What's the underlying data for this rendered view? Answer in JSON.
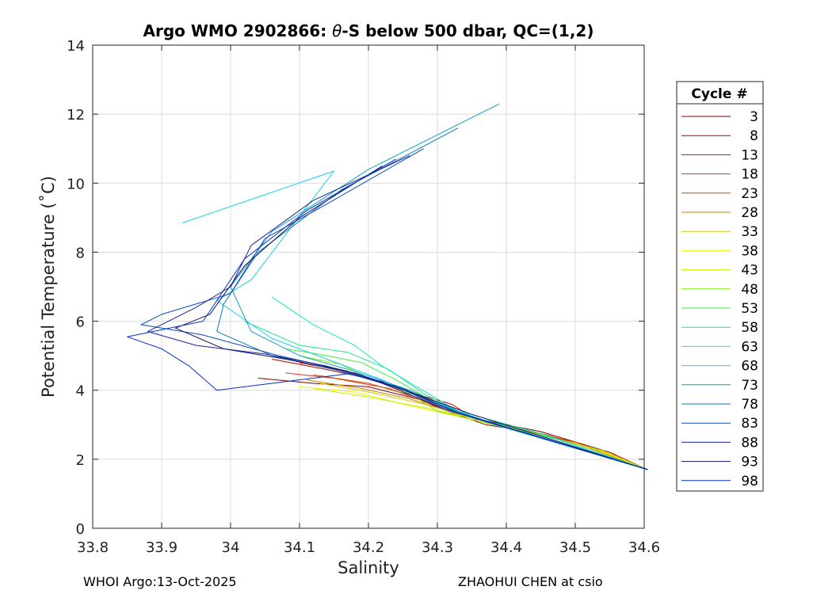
{
  "chart_data": {
    "type": "line",
    "title_prefix": "Argo WMO 2902866: ",
    "title_theta": "θ",
    "title_suffix": "-S below 500 dbar,  QC=(1,2)",
    "xlabel": "Salinity",
    "ylabel": "Potential Temperature (˚C)",
    "xlim": [
      33.8,
      34.6
    ],
    "ylim": [
      0,
      14
    ],
    "xticks": [
      "33.8",
      "33.9",
      "34",
      "34.1",
      "34.2",
      "34.3",
      "34.4",
      "34.5",
      "34.6"
    ],
    "yticks": [
      "0",
      "2",
      "4",
      "6",
      "8",
      "10",
      "12",
      "14"
    ],
    "grid": true,
    "legend_title": "Cycle #",
    "legend_position": "right-outside",
    "series": [
      {
        "name": "3",
        "color": "#7f0000",
        "points": [
          [
            34.04,
            4.35
          ],
          [
            34.12,
            4.2
          ],
          [
            34.2,
            4.1
          ],
          [
            34.28,
            3.7
          ],
          [
            34.35,
            3.2
          ],
          [
            34.45,
            2.8
          ],
          [
            34.55,
            2.2
          ],
          [
            34.605,
            1.7
          ]
        ]
      },
      {
        "name": "8",
        "color": "#b30000",
        "points": [
          [
            34.06,
            4.9
          ],
          [
            34.14,
            4.6
          ],
          [
            34.22,
            4.25
          ],
          [
            34.3,
            3.5
          ],
          [
            34.37,
            3.0
          ],
          [
            34.45,
            2.75
          ],
          [
            34.55,
            2.15
          ],
          [
            34.605,
            1.7
          ]
        ]
      },
      {
        "name": "13",
        "color": "#e60000",
        "points": [
          [
            34.1,
            4.8
          ],
          [
            34.18,
            4.5
          ],
          [
            34.25,
            4.0
          ],
          [
            34.32,
            3.6
          ],
          [
            34.36,
            3.1
          ],
          [
            34.42,
            2.9
          ],
          [
            34.52,
            2.35
          ],
          [
            34.605,
            1.7
          ]
        ]
      },
      {
        "name": "18",
        "color": "#e6301a",
        "points": [
          [
            34.08,
            4.5
          ],
          [
            34.15,
            4.35
          ],
          [
            34.23,
            4.05
          ],
          [
            34.31,
            3.45
          ],
          [
            34.38,
            3.05
          ],
          [
            34.46,
            2.7
          ],
          [
            34.56,
            2.1
          ],
          [
            34.605,
            1.7
          ]
        ]
      },
      {
        "name": "23",
        "color": "#d24d00",
        "points": [
          [
            34.12,
            4.45
          ],
          [
            34.2,
            4.2
          ],
          [
            34.27,
            3.8
          ],
          [
            34.34,
            3.25
          ],
          [
            34.4,
            2.95
          ],
          [
            34.5,
            2.5
          ],
          [
            34.605,
            1.7
          ]
        ]
      },
      {
        "name": "28",
        "color": "#c88200",
        "points": [
          [
            34.11,
            4.3
          ],
          [
            34.19,
            4.05
          ],
          [
            34.26,
            3.75
          ],
          [
            34.33,
            3.3
          ],
          [
            34.41,
            2.9
          ],
          [
            34.51,
            2.4
          ],
          [
            34.605,
            1.7
          ]
        ]
      },
      {
        "name": "33",
        "color": "#d6c800",
        "points": [
          [
            34.13,
            4.2
          ],
          [
            34.2,
            3.95
          ],
          [
            34.28,
            3.6
          ],
          [
            34.35,
            3.2
          ],
          [
            34.42,
            2.85
          ],
          [
            34.52,
            2.35
          ],
          [
            34.605,
            1.7
          ]
        ]
      },
      {
        "name": "38",
        "color": "#f2f200",
        "points": [
          [
            34.1,
            4.1
          ],
          [
            34.18,
            3.95
          ],
          [
            34.26,
            3.55
          ],
          [
            34.34,
            3.2
          ],
          [
            34.43,
            2.8
          ],
          [
            34.53,
            2.3
          ],
          [
            34.605,
            1.7
          ]
        ]
      },
      {
        "name": "43",
        "color": "#c8f000",
        "points": [
          [
            34.12,
            4.05
          ],
          [
            34.2,
            3.8
          ],
          [
            34.28,
            3.5
          ],
          [
            34.36,
            3.15
          ],
          [
            34.44,
            2.75
          ],
          [
            34.54,
            2.25
          ],
          [
            34.605,
            1.7
          ]
        ]
      },
      {
        "name": "48",
        "color": "#86f000",
        "points": [
          [
            34.1,
            5.0
          ],
          [
            34.16,
            4.75
          ],
          [
            34.2,
            4.35
          ],
          [
            34.26,
            3.9
          ],
          [
            34.3,
            3.4
          ],
          [
            34.38,
            3.0
          ],
          [
            34.47,
            2.6
          ],
          [
            34.605,
            1.7
          ]
        ]
      },
      {
        "name": "53",
        "color": "#3cf03c",
        "points": [
          [
            34.08,
            5.2
          ],
          [
            34.14,
            5.0
          ],
          [
            34.19,
            4.8
          ],
          [
            34.24,
            4.3
          ],
          [
            34.3,
            3.6
          ],
          [
            34.38,
            3.0
          ],
          [
            34.48,
            2.55
          ],
          [
            34.605,
            1.7
          ]
        ]
      },
      {
        "name": "58",
        "color": "#1ee68c",
        "points": [
          [
            34.02,
            6.0
          ],
          [
            34.1,
            5.3
          ],
          [
            34.17,
            5.1
          ],
          [
            34.23,
            4.6
          ],
          [
            34.28,
            3.9
          ],
          [
            34.35,
            3.2
          ],
          [
            34.45,
            2.75
          ],
          [
            34.605,
            1.7
          ]
        ]
      },
      {
        "name": "63",
        "color": "#14e6c8",
        "points": [
          [
            34.06,
            6.7
          ],
          [
            34.12,
            5.9
          ],
          [
            34.18,
            5.3
          ],
          [
            34.22,
            4.7
          ],
          [
            34.27,
            4.1
          ],
          [
            34.33,
            3.4
          ],
          [
            34.44,
            2.8
          ],
          [
            34.605,
            1.7
          ]
        ]
      },
      {
        "name": "68",
        "color": "#14d2e6",
        "points": [
          [
            33.93,
            8.85
          ],
          [
            34.15,
            10.35
          ],
          [
            34.03,
            7.2
          ],
          [
            33.98,
            6.6
          ],
          [
            34.06,
            5.5
          ],
          [
            34.14,
            4.9
          ],
          [
            34.22,
            4.3
          ],
          [
            34.3,
            3.6
          ],
          [
            34.4,
            2.9
          ],
          [
            34.605,
            1.7
          ]
        ]
      },
      {
        "name": "73",
        "color": "#0fa0c8",
        "points": [
          [
            34.39,
            12.3
          ],
          [
            34.2,
            10.4
          ],
          [
            34.06,
            8.6
          ],
          [
            34.0,
            7.0
          ],
          [
            34.03,
            5.7
          ],
          [
            34.1,
            5.0
          ],
          [
            34.18,
            4.55
          ],
          [
            34.26,
            4.0
          ],
          [
            34.34,
            3.3
          ],
          [
            34.605,
            1.7
          ]
        ]
      },
      {
        "name": "78",
        "color": "#0a78b4",
        "points": [
          [
            34.33,
            11.6
          ],
          [
            34.16,
            9.8
          ],
          [
            34.04,
            8.0
          ],
          [
            33.99,
            6.5
          ],
          [
            33.98,
            5.7
          ],
          [
            34.06,
            5.0
          ],
          [
            34.15,
            4.6
          ],
          [
            34.24,
            4.1
          ],
          [
            34.32,
            3.4
          ],
          [
            34.605,
            1.7
          ]
        ]
      },
      {
        "name": "83",
        "color": "#0a4bbe",
        "points": [
          [
            34.28,
            11.0
          ],
          [
            34.14,
            9.4
          ],
          [
            34.05,
            8.4
          ],
          [
            34.0,
            6.8
          ],
          [
            33.9,
            6.2
          ],
          [
            33.87,
            5.9
          ],
          [
            33.96,
            5.6
          ],
          [
            34.07,
            5.0
          ],
          [
            34.16,
            4.6
          ],
          [
            34.25,
            4.05
          ],
          [
            34.33,
            3.35
          ],
          [
            34.605,
            1.7
          ]
        ]
      },
      {
        "name": "88",
        "color": "#1e1ea0",
        "points": [
          [
            34.26,
            10.8
          ],
          [
            34.12,
            9.5
          ],
          [
            34.03,
            8.2
          ],
          [
            34.0,
            7.0
          ],
          [
            33.95,
            6.4
          ],
          [
            33.88,
            5.7
          ],
          [
            33.95,
            5.3
          ],
          [
            34.05,
            5.05
          ],
          [
            34.14,
            4.7
          ],
          [
            34.22,
            4.2
          ],
          [
            34.31,
            3.45
          ],
          [
            34.605,
            1.7
          ]
        ]
      },
      {
        "name": "93",
        "color": "#14145a",
        "points": [
          [
            34.22,
            10.5
          ],
          [
            34.1,
            9.0
          ],
          [
            34.02,
            7.6
          ],
          [
            33.97,
            6.2
          ],
          [
            33.92,
            5.8
          ],
          [
            33.99,
            5.2
          ],
          [
            34.08,
            4.9
          ],
          [
            34.17,
            4.55
          ],
          [
            34.26,
            3.95
          ],
          [
            34.35,
            3.3
          ],
          [
            34.605,
            1.7
          ]
        ]
      },
      {
        "name": "98",
        "color": "#0032c8",
        "points": [
          [
            34.24,
            10.7
          ],
          [
            34.11,
            9.2
          ],
          [
            34.02,
            7.8
          ],
          [
            33.96,
            6.0
          ],
          [
            33.85,
            5.55
          ],
          [
            33.9,
            5.2
          ],
          [
            33.94,
            4.7
          ],
          [
            33.98,
            4.0
          ],
          [
            34.1,
            4.3
          ],
          [
            34.18,
            4.5
          ],
          [
            34.24,
            4.1
          ],
          [
            34.33,
            3.35
          ],
          [
            34.605,
            1.7
          ]
        ]
      }
    ]
  },
  "footer": {
    "left": "WHOI Argo:13-Oct-2025",
    "right": "ZHAOHUI CHEN at csio"
  }
}
